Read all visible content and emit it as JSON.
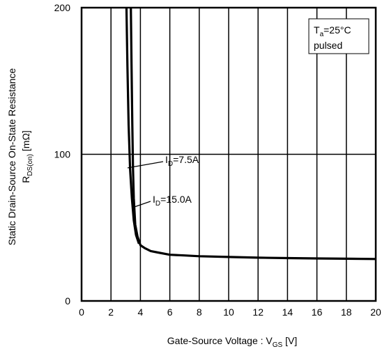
{
  "chart_data": {
    "type": "line",
    "xlabel": {
      "text": "Gate-Source Voltage : V",
      "sub": "GS",
      "unit": " [V]"
    },
    "ylabel": {
      "line1": "Static Drain-Source On-State Resistance",
      "line2_prefix": "R",
      "line2_sub": "DS(on)",
      "line2_unit": " [mΩ]"
    },
    "xlim": [
      0,
      20
    ],
    "ylim": [
      0,
      200
    ],
    "x_ticks": [
      0,
      2,
      4,
      6,
      8,
      10,
      12,
      14,
      16,
      18,
      20
    ],
    "y_ticks": [
      0,
      100,
      200
    ],
    "grid": {
      "vertical": true,
      "horizontal": true
    },
    "conditions": {
      "line1_prefix": "T",
      "line1_sub": "a",
      "line1_rest": "=25°C",
      "line2": "pulsed"
    },
    "series": [
      {
        "name": "ID=7.5A",
        "label_prefix": "I",
        "label_sub": "D",
        "label_rest": "=7.5A",
        "x": [
          3.05,
          3.12,
          3.2,
          3.3,
          3.42,
          3.55,
          3.7,
          3.9
        ],
        "y": [
          200,
          160,
          120,
          90,
          70,
          55,
          45,
          39
        ]
      },
      {
        "name": "ID=15.0A",
        "label_prefix": "I",
        "label_sub": "D",
        "label_rest": "=15.0A",
        "x": [
          3.35,
          3.4,
          3.45,
          3.5,
          3.55,
          3.65,
          3.8,
          4.0,
          4.3,
          4.7,
          5.2,
          6,
          7,
          8,
          10,
          12,
          14,
          16,
          18,
          20
        ],
        "y": [
          200,
          160,
          120,
          90,
          70,
          52,
          44,
          38,
          36,
          34,
          33,
          31.5,
          31,
          30.5,
          30,
          29.5,
          29.2,
          29,
          28.8,
          28.6
        ]
      }
    ]
  }
}
